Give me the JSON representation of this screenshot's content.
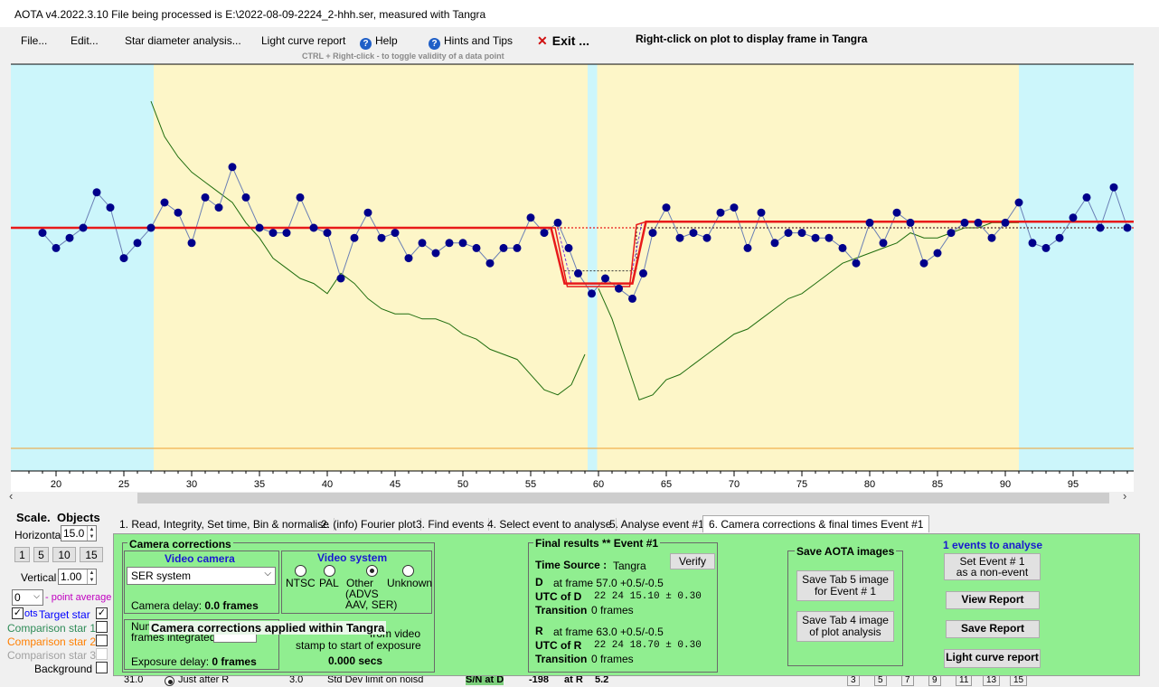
{
  "window": {
    "title": "AOTA v4.2022.3.10    File being processed is E:\\2022-08-09-2224_2-hhh.ser, measured with Tangra"
  },
  "menu": {
    "file": "File...",
    "edit": "Edit...",
    "star_diameter": "Star diameter analysis...",
    "light_curve_report": "Light curve report",
    "help": "Help",
    "hints": "Hints and Tips",
    "exit": "Exit ...",
    "right_click_hint": "Right-click on plot to display frame in Tangra",
    "ctrl_hint": "CTRL + Right-click  -  to toggle validity of a data point"
  },
  "plot": {
    "x_ticks": [
      "20",
      "25",
      "30",
      "35",
      "40",
      "45",
      "50",
      "55",
      "60",
      "65",
      "70",
      "75",
      "80",
      "85",
      "90",
      "95"
    ],
    "colors": {
      "baseline_zone": "#ccf6fb",
      "event_zone": "#fdf6c8",
      "data_point": "#00008b",
      "data_line": "#6a7fb5",
      "model_line": "#e81a1a",
      "comparison_line": "#1f6d0e",
      "orange_line": "#f0a030"
    },
    "data": [
      [
        19,
        -1
      ],
      [
        20,
        -4
      ],
      [
        21,
        -2
      ],
      [
        22,
        0
      ],
      [
        23,
        7
      ],
      [
        24,
        4
      ],
      [
        25,
        -6
      ],
      [
        26,
        -3
      ],
      [
        27,
        0
      ],
      [
        28,
        5
      ],
      [
        29,
        3
      ],
      [
        30,
        -3
      ],
      [
        31,
        6
      ],
      [
        32,
        4
      ],
      [
        33,
        12
      ],
      [
        34,
        6
      ],
      [
        35,
        0
      ],
      [
        36,
        -1
      ],
      [
        37,
        -1
      ],
      [
        38,
        6
      ],
      [
        39,
        0
      ],
      [
        40,
        -1
      ],
      [
        41,
        -10
      ],
      [
        42,
        -2
      ],
      [
        43,
        3
      ],
      [
        44,
        -2
      ],
      [
        45,
        -1
      ],
      [
        46,
        -6
      ],
      [
        47,
        -3
      ],
      [
        48,
        -5
      ],
      [
        49,
        -3
      ],
      [
        50,
        -3
      ],
      [
        51,
        -4
      ],
      [
        52,
        -7
      ],
      [
        53,
        -4
      ],
      [
        54,
        -4
      ],
      [
        55,
        2
      ],
      [
        56,
        -1
      ],
      [
        57,
        1
      ],
      [
        57.8,
        -4
      ],
      [
        58.5,
        -9
      ],
      [
        59.5,
        -13
      ],
      [
        60.5,
        -10
      ],
      [
        61.5,
        -12
      ],
      [
        62.5,
        -14
      ],
      [
        63.3,
        -9
      ],
      [
        64,
        -1
      ],
      [
        65,
        4
      ],
      [
        66,
        -2
      ],
      [
        67,
        -1
      ],
      [
        68,
        -2
      ],
      [
        69,
        3
      ],
      [
        70,
        4
      ],
      [
        71,
        -4
      ],
      [
        72,
        3
      ],
      [
        73,
        -3
      ],
      [
        74,
        -1
      ],
      [
        75,
        -1
      ],
      [
        76,
        -2
      ],
      [
        77,
        -2
      ],
      [
        78,
        -4
      ],
      [
        79,
        -7
      ],
      [
        80,
        1
      ],
      [
        81,
        -3
      ],
      [
        82,
        3
      ],
      [
        83,
        1
      ],
      [
        84,
        -7
      ],
      [
        85,
        -5
      ],
      [
        86,
        -1
      ],
      [
        87,
        1
      ],
      [
        88,
        1
      ],
      [
        89,
        -2
      ],
      [
        90,
        1
      ],
      [
        91,
        5
      ],
      [
        92,
        -3
      ],
      [
        93,
        -4
      ],
      [
        94,
        -2
      ],
      [
        95,
        2
      ],
      [
        96,
        6
      ],
      [
        97,
        0
      ],
      [
        98,
        8
      ],
      [
        99,
        0
      ]
    ],
    "model": {
      "baseline": 0,
      "bottom": -11,
      "d_frame": 57.0,
      "r_frame": 63.0
    },
    "comparison_a": [
      [
        27,
        25
      ],
      [
        28,
        18
      ],
      [
        29,
        14
      ],
      [
        30,
        11
      ],
      [
        31,
        9
      ],
      [
        32,
        7
      ],
      [
        33,
        5
      ],
      [
        34,
        1
      ],
      [
        35,
        -2
      ],
      [
        36,
        -6
      ],
      [
        37,
        -8
      ],
      [
        38,
        -10
      ],
      [
        39,
        -11
      ],
      [
        40,
        -13
      ],
      [
        41,
        -9
      ],
      [
        42,
        -11
      ],
      [
        43,
        -14
      ],
      [
        44,
        -16
      ],
      [
        45,
        -17
      ],
      [
        46,
        -17
      ],
      [
        47,
        -18
      ],
      [
        48,
        -18
      ],
      [
        49,
        -19
      ],
      [
        50,
        -21
      ],
      [
        51,
        -22
      ],
      [
        52,
        -24
      ],
      [
        53,
        -25
      ],
      [
        54,
        -26
      ],
      [
        55,
        -29
      ],
      [
        56,
        -32
      ],
      [
        57,
        -33
      ],
      [
        58,
        -31
      ],
      [
        59,
        -25
      ]
    ],
    "comparison_b": [
      [
        60,
        -12
      ],
      [
        61,
        -18
      ],
      [
        62,
        -26
      ],
      [
        63,
        -34
      ],
      [
        64,
        -33
      ],
      [
        65,
        -30
      ],
      [
        66,
        -29
      ],
      [
        67,
        -27
      ],
      [
        68,
        -25
      ],
      [
        69,
        -23
      ],
      [
        70,
        -21
      ],
      [
        71,
        -20
      ],
      [
        72,
        -18
      ],
      [
        73,
        -16
      ],
      [
        74,
        -14
      ],
      [
        75,
        -13
      ],
      [
        76,
        -11
      ],
      [
        77,
        -9
      ],
      [
        78,
        -7
      ],
      [
        79,
        -6
      ],
      [
        80,
        -5
      ],
      [
        81,
        -4
      ],
      [
        82,
        -3
      ],
      [
        83,
        -1
      ],
      [
        84,
        -2
      ],
      [
        85,
        -2
      ],
      [
        86,
        -1
      ],
      [
        87,
        0
      ],
      [
        88,
        0
      ],
      [
        89,
        1
      ],
      [
        90,
        1
      ],
      [
        91,
        1
      ]
    ]
  },
  "left_panel": {
    "scale_label": "Scale.",
    "objects_label": "Objects",
    "horizontal_label": "Horizontal",
    "horizontal_value": "15.0",
    "scale_buttons": [
      "1",
      "5",
      "10",
      "15"
    ],
    "vertical_label": "Vertical",
    "vertical_value": "1.00",
    "point_avg_value": "0",
    "point_avg_label": "- point average",
    "plots_label": "ots",
    "target_star": "Target star",
    "comparison1": "Comparison star 1",
    "comparison2": "Comparison star 2",
    "comparison3": "Comparison star 3",
    "background": "Background",
    "colors": {
      "target": "#0000ff",
      "comp1": "#2e8b57",
      "comp2": "#ff7f00",
      "comp3": "#a0a0a0",
      "point_avg": "#c000c0"
    }
  },
  "tabs": [
    "1. Read, Integrity, Set time, Bin & normalise",
    "2. (info)  Fourier plot",
    "3. Find events",
    "4. Select event to analyse",
    "5. Analyse event #1",
    "6. Camera corrections & final times Event #1"
  ],
  "camera": {
    "group_title": "Camera corrections",
    "video_camera_title": "Video camera",
    "camera_select": "SER system",
    "camera_delay_label": "Camera delay: ",
    "camera_delay_value": "0.0 frames",
    "video_system_title": "Video system",
    "radio_ntsc": "NTSC",
    "radio_pal": "PAL",
    "radio_other": "Other",
    "radio_other_sub1": "(ADVS",
    "radio_other_sub2": "AAV, SER)",
    "radio_unknown": "Unknown",
    "num_frames_label1": "Num",
    "num_frames_label2": "frames integrated",
    "exposure_delay_label": "Exposure delay: ",
    "exposure_delay_value": "0 frames",
    "timestamp_label1": "from video",
    "timestamp_label2": "stamp to start of exposure",
    "timestamp_value": "0.000 secs",
    "overlay_message": "Camera corrections applied within Tangra"
  },
  "final_results": {
    "title": "Final results   **   Event #1",
    "verify": "Verify",
    "time_source_label": "Time Source :",
    "time_source_value": "Tangra",
    "d_label": "D",
    "d_frame": "at frame 57.0  +0.5/-0.5",
    "utc_d_label": "UTC of D",
    "utc_d_value": "22 24 15.10 ± 0.30",
    "transition_label": "Transition",
    "d_transition": "0 frames",
    "r_label": "R",
    "r_frame": "at frame 63.0  +0.5/-0.5",
    "utc_r_label": "UTC of R",
    "utc_r_value": "22 24 18.70 ± 0.30",
    "r_transition": "0 frames"
  },
  "save_images": {
    "title": "Save AOTA images",
    "tab5_line1": "Save Tab 5 image",
    "tab5_line2": "for Event # 1",
    "tab4_line1": "Save Tab 4 image",
    "tab4_line2": "of plot analysis"
  },
  "events_panel": {
    "count_label": "1  events to analyse",
    "set_event_line1": "Set Event # 1",
    "set_event_line2": "as a non-event",
    "view_report": "View Report",
    "save_report": "Save Report",
    "light_curve_report": "Light curve report"
  },
  "bottom_strip": {
    "val1": "31.0",
    "just_after": "Just after R",
    "val2": "3.0",
    "std_dev": "Std Dev limit on noisd",
    "sn_label": "S/N   at D",
    "sn_value": "-198",
    "at_r": "at R",
    "at_r_value": "5.2",
    "nums": [
      "3",
      "5",
      "7",
      "9",
      "11",
      "13",
      "15"
    ]
  }
}
